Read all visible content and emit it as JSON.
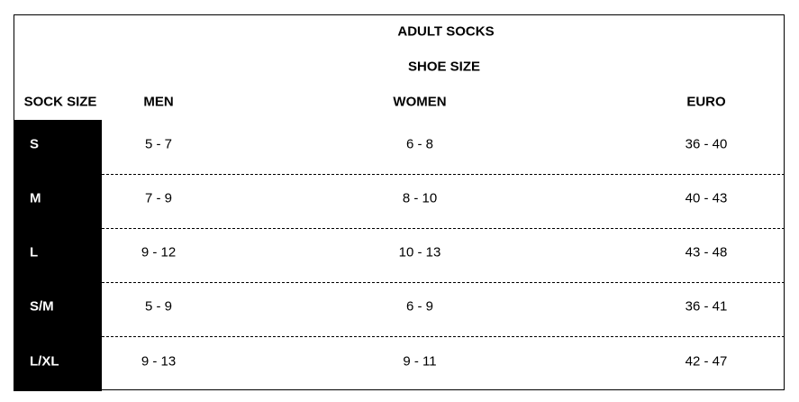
{
  "title": "ADULT SOCKS",
  "subtitle": "SHOE SIZE",
  "headers": {
    "sock_size": "SOCK SIZE",
    "men": "MEN",
    "women": "WOMEN",
    "euro": "EURO"
  },
  "rows": [
    {
      "size": "S",
      "men": "5 - 7",
      "women": "6 - 8",
      "euro": "36 - 40"
    },
    {
      "size": "M",
      "men": "7 - 9",
      "women": "8 - 10",
      "euro": "40 - 43"
    },
    {
      "size": "L",
      "men": "9 - 12",
      "women": "10 - 13",
      "euro": "43 - 48"
    },
    {
      "size": "S/M",
      "men": "5 - 9",
      "women": "6 - 9",
      "euro": "36 - 41"
    },
    {
      "size": "L/XL",
      "men": "9 - 13",
      "women": "9 - 11",
      "euro": "42 - 47"
    }
  ]
}
